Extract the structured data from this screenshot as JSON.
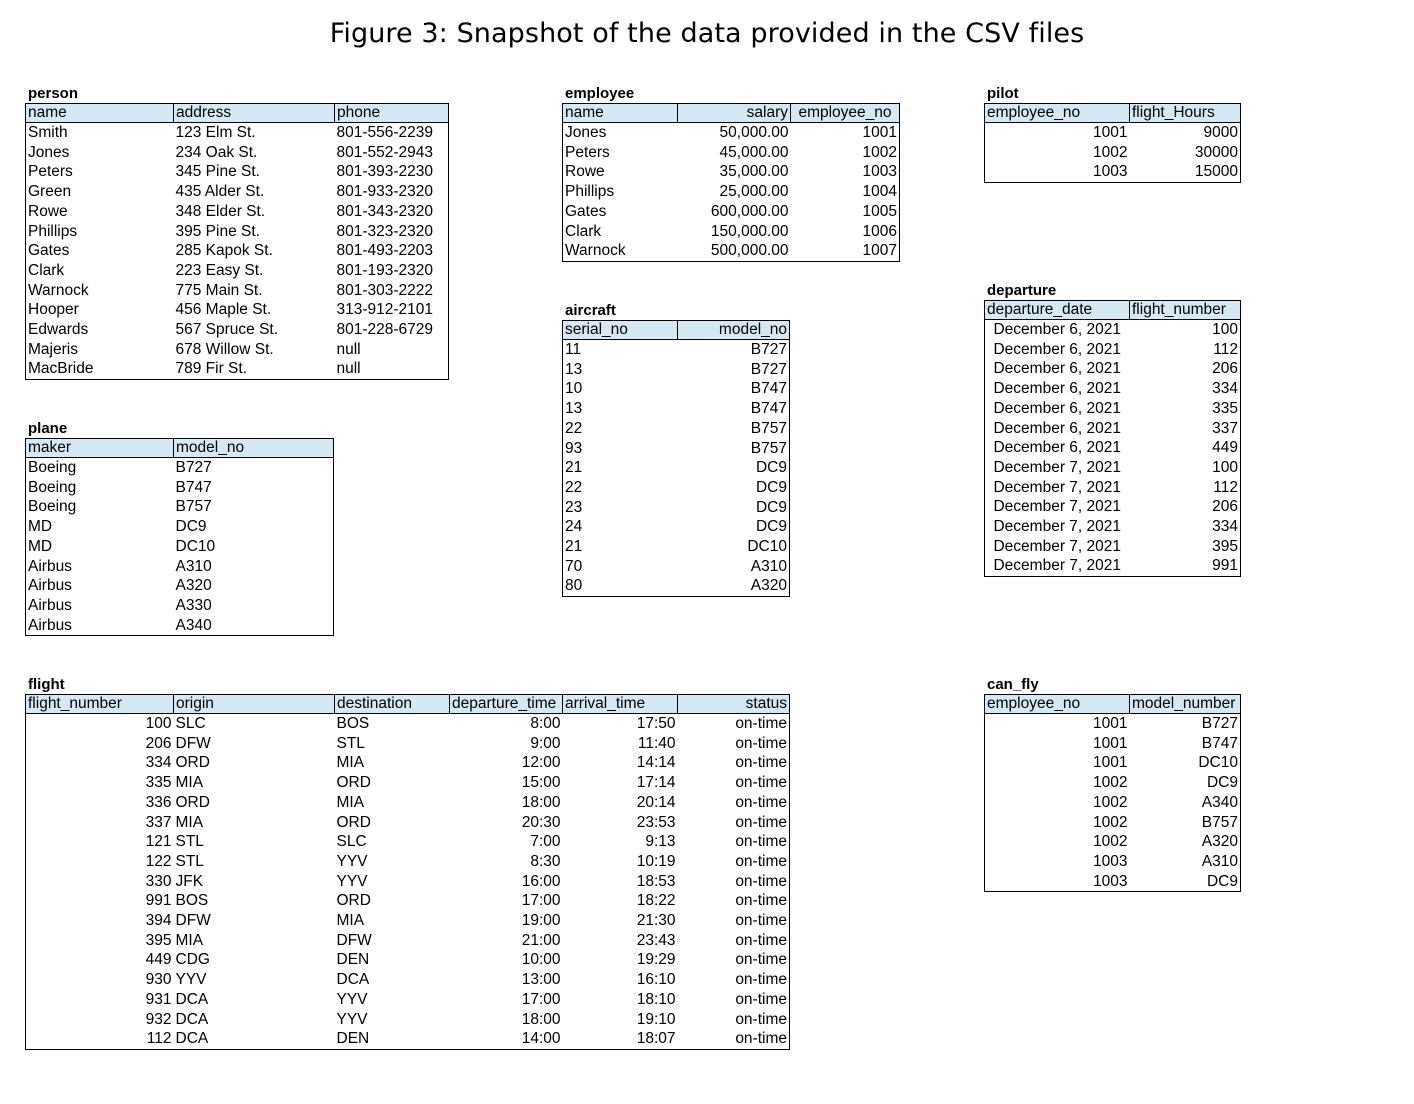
{
  "figure_title": "Figure 3: Snapshot of the data provided in the CSV files",
  "person": {
    "name": "person",
    "headers": [
      "name",
      "address",
      "phone"
    ],
    "rows": [
      [
        "Smith",
        "123 Elm St.",
        "801-556-2239"
      ],
      [
        "Jones",
        "234 Oak St.",
        "801-552-2943"
      ],
      [
        "Peters",
        "345 Pine St.",
        "801-393-2230"
      ],
      [
        "Green",
        "435 Alder St.",
        "801-933-2320"
      ],
      [
        "Rowe",
        "348 Elder St.",
        "801-343-2320"
      ],
      [
        "Phillips",
        "395 Pine St.",
        "801-323-2320"
      ],
      [
        "Gates",
        "285 Kapok St.",
        "801-493-2203"
      ],
      [
        "Clark",
        "223 Easy St.",
        "801-193-2320"
      ],
      [
        "Warnock",
        "775 Main St.",
        "801-303-2222"
      ],
      [
        "Hooper",
        "456 Maple St.",
        "313-912-2101"
      ],
      [
        "Edwards",
        "567 Spruce St.",
        "801-228-6729"
      ],
      [
        "Majeris",
        "678 Willow St.",
        "null"
      ],
      [
        "MacBride",
        "789 Fir St.",
        "null"
      ]
    ]
  },
  "employee": {
    "name": "employee",
    "headers": [
      "name",
      "salary",
      "employee_no"
    ],
    "rows": [
      [
        "Jones",
        "50,000.00",
        "1001"
      ],
      [
        "Peters",
        "45,000.00",
        "1002"
      ],
      [
        "Rowe",
        "35,000.00",
        "1003"
      ],
      [
        "Phillips",
        "25,000.00",
        "1004"
      ],
      [
        "Gates",
        "600,000.00",
        "1005"
      ],
      [
        "Clark",
        "150,000.00",
        "1006"
      ],
      [
        "Warnock",
        "500,000.00",
        "1007"
      ]
    ]
  },
  "pilot": {
    "name": "pilot",
    "headers": [
      "employee_no",
      "flight_Hours"
    ],
    "rows": [
      [
        "1001",
        "9000"
      ],
      [
        "1002",
        "30000"
      ],
      [
        "1003",
        "15000"
      ]
    ]
  },
  "aircraft": {
    "name": "aircraft",
    "headers": [
      "serial_no",
      "model_no"
    ],
    "rows": [
      [
        "11",
        "B727"
      ],
      [
        "13",
        "B727"
      ],
      [
        "10",
        "B747"
      ],
      [
        "13",
        "B747"
      ],
      [
        "22",
        "B757"
      ],
      [
        "93",
        "B757"
      ],
      [
        "21",
        "DC9"
      ],
      [
        "22",
        "DC9"
      ],
      [
        "23",
        "DC9"
      ],
      [
        "24",
        "DC9"
      ],
      [
        "21",
        "DC10"
      ],
      [
        "70",
        "A310"
      ],
      [
        "80",
        "A320"
      ]
    ]
  },
  "departure": {
    "name": "departure",
    "headers": [
      "departure_date",
      "flight_number"
    ],
    "rows": [
      [
        "December 6, 2021",
        "100"
      ],
      [
        "December 6, 2021",
        "112"
      ],
      [
        "December 6, 2021",
        "206"
      ],
      [
        "December 6, 2021",
        "334"
      ],
      [
        "December 6, 2021",
        "335"
      ],
      [
        "December 6, 2021",
        "337"
      ],
      [
        "December 6, 2021",
        "449"
      ],
      [
        "December 7, 2021",
        "100"
      ],
      [
        "December 7, 2021",
        "112"
      ],
      [
        "December 7, 2021",
        "206"
      ],
      [
        "December 7, 2021",
        "334"
      ],
      [
        "December 7, 2021",
        "395"
      ],
      [
        "December 7, 2021",
        "991"
      ]
    ]
  },
  "plane": {
    "name": "plane",
    "headers": [
      "maker",
      "model_no"
    ],
    "rows": [
      [
        "Boeing",
        "B727"
      ],
      [
        "Boeing",
        "B747"
      ],
      [
        "Boeing",
        "B757"
      ],
      [
        "MD",
        "DC9"
      ],
      [
        "MD",
        "DC10"
      ],
      [
        "Airbus",
        "A310"
      ],
      [
        "Airbus",
        "A320"
      ],
      [
        "Airbus",
        "A330"
      ],
      [
        "Airbus",
        "A340"
      ]
    ]
  },
  "flight": {
    "name": "flight",
    "headers": [
      "flight_number",
      "origin",
      "destination",
      "departure_time",
      "arrival_time",
      "status"
    ],
    "rows": [
      [
        "100",
        "SLC",
        "BOS",
        "8:00",
        "17:50",
        "on-time"
      ],
      [
        "206",
        "DFW",
        "STL",
        "9:00",
        "11:40",
        "on-time"
      ],
      [
        "334",
        "ORD",
        "MIA",
        "12:00",
        "14:14",
        "on-time"
      ],
      [
        "335",
        "MIA",
        "ORD",
        "15:00",
        "17:14",
        "on-time"
      ],
      [
        "336",
        "ORD",
        "MIA",
        "18:00",
        "20:14",
        "on-time"
      ],
      [
        "337",
        "MIA",
        "ORD",
        "20:30",
        "23:53",
        "on-time"
      ],
      [
        "121",
        "STL",
        "SLC",
        "7:00",
        "9:13",
        "on-time"
      ],
      [
        "122",
        "STL",
        "YYV",
        "8:30",
        "10:19",
        "on-time"
      ],
      [
        "330",
        "JFK",
        "YYV",
        "16:00",
        "18:53",
        "on-time"
      ],
      [
        "991",
        "BOS",
        "ORD",
        "17:00",
        "18:22",
        "on-time"
      ],
      [
        "394",
        "DFW",
        "MIA",
        "19:00",
        "21:30",
        "on-time"
      ],
      [
        "395",
        "MIA",
        "DFW",
        "21:00",
        "23:43",
        "on-time"
      ],
      [
        "449",
        "CDG",
        "DEN",
        "10:00",
        "19:29",
        "on-time"
      ],
      [
        "930",
        "YYV",
        "DCA",
        "13:00",
        "16:10",
        "on-time"
      ],
      [
        "931",
        "DCA",
        "YYV",
        "17:00",
        "18:10",
        "on-time"
      ],
      [
        "932",
        "DCA",
        "YYV",
        "18:00",
        "19:10",
        "on-time"
      ],
      [
        "112",
        "DCA",
        "DEN",
        "14:00",
        "18:07",
        "on-time"
      ]
    ]
  },
  "can_fly": {
    "name": "can_fly",
    "headers": [
      "employee_no",
      "model_number"
    ],
    "rows": [
      [
        "1001",
        "B727"
      ],
      [
        "1001",
        "B747"
      ],
      [
        "1001",
        "DC10"
      ],
      [
        "1002",
        "DC9"
      ],
      [
        "1002",
        "A340"
      ],
      [
        "1002",
        "B757"
      ],
      [
        "1002",
        "A320"
      ],
      [
        "1003",
        "A310"
      ],
      [
        "1003",
        "DC9"
      ]
    ]
  }
}
